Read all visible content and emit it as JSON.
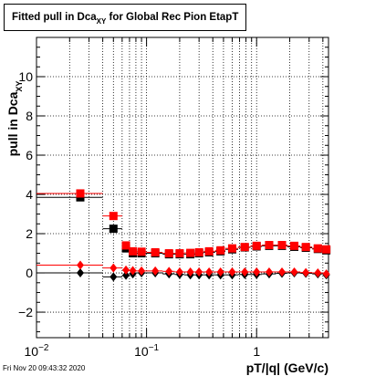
{
  "title": {
    "main": "Fitted pull in Dca",
    "subscript": "XY",
    "suffix": " for Global Rec Pion EtapT"
  },
  "footer": {
    "timestamp": "Fri Nov 20 09:43:32 2020"
  },
  "chart_data": {
    "type": "scatter",
    "title": "Fitted pull in Dca_XY for Global Rec Pion EtapT",
    "xlabel": "pT/|q| (GeV/c)",
    "ylabel": "pull in Dca",
    "ylabel_subscript": "XY",
    "xscale": "log",
    "xlim": [
      0.01,
      4.5
    ],
    "ylim": [
      -3.3,
      12
    ],
    "grid": true,
    "x_ticks": [
      {
        "value": 0.01,
        "mantissa": "10",
        "exponent": "-2"
      },
      {
        "value": 0.1,
        "mantissa": "10",
        "exponent": "-1"
      },
      {
        "value": 1,
        "mantissa": "1",
        "exponent": ""
      }
    ],
    "y_ticks": [
      -2,
      0,
      2,
      4,
      6,
      8,
      10
    ],
    "series": [
      {
        "marker": "square",
        "color": "#000000",
        "points": [
          {
            "x": 0.025,
            "y": 3.85,
            "xlo": 0.01,
            "xhi": 0.04
          },
          {
            "x": 0.05,
            "y": 2.25,
            "xlo": 0.04,
            "xhi": 0.06
          },
          {
            "x": 0.065,
            "y": 1.25,
            "xlo": 0.06,
            "xhi": 0.07
          },
          {
            "x": 0.075,
            "y": 1.0,
            "xlo": 0.07,
            "xhi": 0.08
          },
          {
            "x": 0.09,
            "y": 1.0,
            "xlo": 0.08,
            "xhi": 0.1
          },
          {
            "x": 0.12,
            "y": 1.0,
            "xlo": 0.1,
            "xhi": 0.14
          },
          {
            "x": 0.16,
            "y": 0.95,
            "xlo": 0.14,
            "xhi": 0.18
          },
          {
            "x": 0.2,
            "y": 0.95,
            "xlo": 0.18,
            "xhi": 0.22
          },
          {
            "x": 0.25,
            "y": 0.95,
            "xlo": 0.22,
            "xhi": 0.28
          },
          {
            "x": 0.3,
            "y": 1.0,
            "xlo": 0.28,
            "xhi": 0.33
          },
          {
            "x": 0.37,
            "y": 1.05,
            "xlo": 0.33,
            "xhi": 0.42
          },
          {
            "x": 0.47,
            "y": 1.1,
            "xlo": 0.42,
            "xhi": 0.52
          },
          {
            "x": 0.6,
            "y": 1.2,
            "xlo": 0.52,
            "xhi": 0.68
          },
          {
            "x": 0.78,
            "y": 1.3,
            "xlo": 0.68,
            "xhi": 0.88
          },
          {
            "x": 1.0,
            "y": 1.35,
            "xlo": 0.88,
            "xhi": 1.12
          },
          {
            "x": 1.3,
            "y": 1.38,
            "xlo": 1.12,
            "xhi": 1.5
          },
          {
            "x": 1.7,
            "y": 1.38,
            "xlo": 1.5,
            "xhi": 1.9
          },
          {
            "x": 2.2,
            "y": 1.33,
            "xlo": 1.9,
            "xhi": 2.5
          },
          {
            "x": 2.8,
            "y": 1.28,
            "xlo": 2.5,
            "xhi": 3.2
          },
          {
            "x": 3.6,
            "y": 1.22,
            "xlo": 3.2,
            "xhi": 4.1
          },
          {
            "x": 4.3,
            "y": 1.15,
            "xlo": 4.1,
            "xhi": 4.5
          }
        ]
      },
      {
        "marker": "square",
        "color": "#ff0000",
        "points": [
          {
            "x": 0.025,
            "y": 4.05,
            "xlo": 0.01,
            "xhi": 0.04
          },
          {
            "x": 0.05,
            "y": 2.9,
            "xlo": 0.04,
            "xhi": 0.06
          },
          {
            "x": 0.065,
            "y": 1.4,
            "xlo": 0.06,
            "xhi": 0.07
          },
          {
            "x": 0.075,
            "y": 1.1,
            "xlo": 0.07,
            "xhi": 0.08
          },
          {
            "x": 0.09,
            "y": 1.08,
            "xlo": 0.08,
            "xhi": 0.1
          },
          {
            "x": 0.12,
            "y": 1.05,
            "xlo": 0.1,
            "xhi": 0.14
          },
          {
            "x": 0.16,
            "y": 1.0,
            "xlo": 0.14,
            "xhi": 0.18
          },
          {
            "x": 0.2,
            "y": 1.0,
            "xlo": 0.18,
            "xhi": 0.22
          },
          {
            "x": 0.25,
            "y": 1.02,
            "xlo": 0.22,
            "xhi": 0.28
          },
          {
            "x": 0.3,
            "y": 1.05,
            "xlo": 0.28,
            "xhi": 0.33
          },
          {
            "x": 0.37,
            "y": 1.1,
            "xlo": 0.33,
            "xhi": 0.42
          },
          {
            "x": 0.47,
            "y": 1.15,
            "xlo": 0.42,
            "xhi": 0.52
          },
          {
            "x": 0.6,
            "y": 1.25,
            "xlo": 0.52,
            "xhi": 0.68
          },
          {
            "x": 0.78,
            "y": 1.32,
            "xlo": 0.68,
            "xhi": 0.88
          },
          {
            "x": 1.0,
            "y": 1.38,
            "xlo": 0.88,
            "xhi": 1.12
          },
          {
            "x": 1.3,
            "y": 1.42,
            "xlo": 1.12,
            "xhi": 1.5
          },
          {
            "x": 1.7,
            "y": 1.42,
            "xlo": 1.5,
            "xhi": 1.9
          },
          {
            "x": 2.2,
            "y": 1.38,
            "xlo": 1.9,
            "xhi": 2.5
          },
          {
            "x": 2.8,
            "y": 1.32,
            "xlo": 2.5,
            "xhi": 3.2
          },
          {
            "x": 3.6,
            "y": 1.25,
            "xlo": 3.2,
            "xhi": 4.1
          },
          {
            "x": 4.3,
            "y": 1.2,
            "xlo": 4.1,
            "xhi": 4.5
          }
        ]
      },
      {
        "marker": "diamond",
        "color": "#000000",
        "points": [
          {
            "x": 0.025,
            "y": 0.0,
            "xlo": 0.01,
            "xhi": 0.04
          },
          {
            "x": 0.05,
            "y": -0.2,
            "xlo": 0.04,
            "xhi": 0.06
          },
          {
            "x": 0.065,
            "y": -0.12,
            "xlo": 0.06,
            "xhi": 0.07
          },
          {
            "x": 0.075,
            "y": -0.05,
            "xlo": 0.07,
            "xhi": 0.08
          },
          {
            "x": 0.09,
            "y": 0.0,
            "xlo": 0.08,
            "xhi": 0.1
          },
          {
            "x": 0.12,
            "y": 0.0,
            "xlo": 0.1,
            "xhi": 0.14
          },
          {
            "x": 0.16,
            "y": -0.05,
            "xlo": 0.14,
            "xhi": 0.18
          },
          {
            "x": 0.2,
            "y": -0.08,
            "xlo": 0.18,
            "xhi": 0.22
          },
          {
            "x": 0.25,
            "y": -0.1,
            "xlo": 0.22,
            "xhi": 0.28
          },
          {
            "x": 0.3,
            "y": -0.1,
            "xlo": 0.28,
            "xhi": 0.33
          },
          {
            "x": 0.37,
            "y": -0.1,
            "xlo": 0.33,
            "xhi": 0.42
          },
          {
            "x": 0.47,
            "y": -0.1,
            "xlo": 0.42,
            "xhi": 0.52
          },
          {
            "x": 0.6,
            "y": -0.1,
            "xlo": 0.52,
            "xhi": 0.68
          },
          {
            "x": 0.78,
            "y": -0.08,
            "xlo": 0.68,
            "xhi": 0.88
          },
          {
            "x": 1.0,
            "y": -0.08,
            "xlo": 0.88,
            "xhi": 1.12
          },
          {
            "x": 1.3,
            "y": -0.05,
            "xlo": 1.12,
            "xhi": 1.5
          },
          {
            "x": 1.7,
            "y": -0.02,
            "xlo": 1.5,
            "xhi": 1.9
          },
          {
            "x": 2.2,
            "y": 0.0,
            "xlo": 1.9,
            "xhi": 2.5
          },
          {
            "x": 2.8,
            "y": -0.02,
            "xlo": 2.5,
            "xhi": 3.2
          },
          {
            "x": 3.6,
            "y": -0.05,
            "xlo": 3.2,
            "xhi": 4.1
          },
          {
            "x": 4.3,
            "y": -0.1,
            "xlo": 4.1,
            "xhi": 4.5
          }
        ]
      },
      {
        "marker": "diamond",
        "color": "#ff0000",
        "points": [
          {
            "x": 0.025,
            "y": 0.4,
            "xlo": 0.01,
            "xhi": 0.04
          },
          {
            "x": 0.05,
            "y": 0.25,
            "xlo": 0.04,
            "xhi": 0.06
          },
          {
            "x": 0.065,
            "y": 0.15,
            "xlo": 0.06,
            "xhi": 0.07
          },
          {
            "x": 0.075,
            "y": 0.12,
            "xlo": 0.07,
            "xhi": 0.08
          },
          {
            "x": 0.09,
            "y": 0.1,
            "xlo": 0.08,
            "xhi": 0.1
          },
          {
            "x": 0.12,
            "y": 0.1,
            "xlo": 0.1,
            "xhi": 0.14
          },
          {
            "x": 0.16,
            "y": 0.08,
            "xlo": 0.14,
            "xhi": 0.18
          },
          {
            "x": 0.2,
            "y": 0.05,
            "xlo": 0.18,
            "xhi": 0.22
          },
          {
            "x": 0.25,
            "y": 0.05,
            "xlo": 0.22,
            "xhi": 0.28
          },
          {
            "x": 0.3,
            "y": 0.05,
            "xlo": 0.28,
            "xhi": 0.33
          },
          {
            "x": 0.37,
            "y": 0.05,
            "xlo": 0.33,
            "xhi": 0.42
          },
          {
            "x": 0.47,
            "y": 0.05,
            "xlo": 0.42,
            "xhi": 0.52
          },
          {
            "x": 0.6,
            "y": 0.05,
            "xlo": 0.52,
            "xhi": 0.68
          },
          {
            "x": 0.78,
            "y": 0.05,
            "xlo": 0.68,
            "xhi": 0.88
          },
          {
            "x": 1.0,
            "y": 0.05,
            "xlo": 0.88,
            "xhi": 1.12
          },
          {
            "x": 1.3,
            "y": 0.05,
            "xlo": 1.12,
            "xhi": 1.5
          },
          {
            "x": 1.7,
            "y": 0.05,
            "xlo": 1.5,
            "xhi": 1.9
          },
          {
            "x": 2.2,
            "y": 0.05,
            "xlo": 1.9,
            "xhi": 2.5
          },
          {
            "x": 2.8,
            "y": 0.02,
            "xlo": 2.5,
            "xhi": 3.2
          },
          {
            "x": 3.6,
            "y": 0.0,
            "xlo": 3.2,
            "xhi": 4.1
          },
          {
            "x": 4.3,
            "y": -0.05,
            "xlo": 4.1,
            "xhi": 4.5
          }
        ]
      }
    ]
  }
}
